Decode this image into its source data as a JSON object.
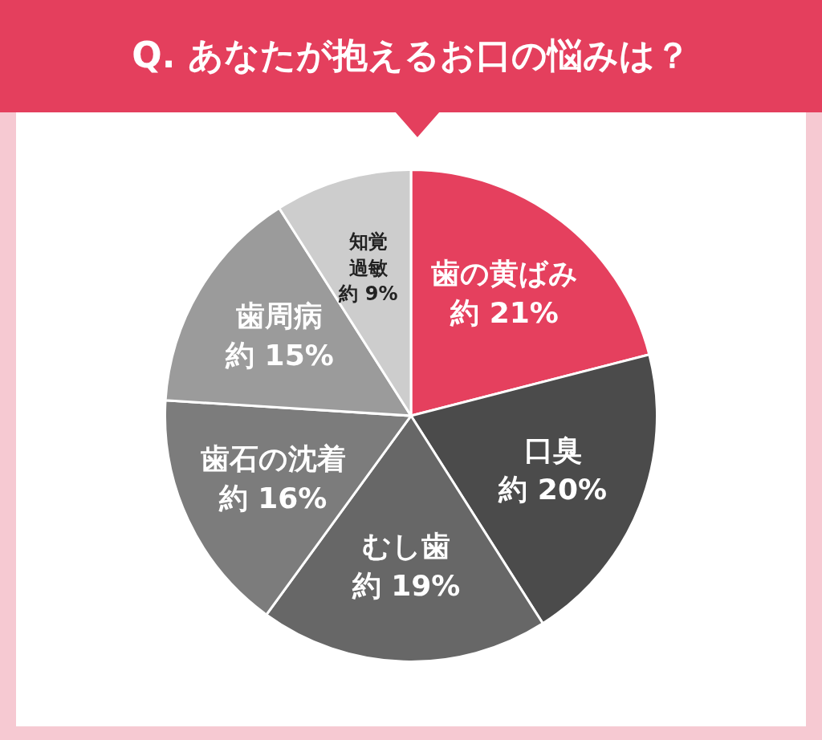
{
  "chart_data": {
    "type": "pie",
    "title": "Q. あなたが抱えるお口の悩みは？",
    "categories": [
      "歯の黄ばみ",
      "口臭",
      "むし歯",
      "歯石の沈着",
      "歯周病",
      "知覚過敏"
    ],
    "values": [
      21,
      20,
      19,
      16,
      15,
      9
    ],
    "colors": [
      "#e5405e",
      "#4b4b4b",
      "#676767",
      "#7c7c7c",
      "#9b9b9b",
      "#cdcdcd"
    ],
    "value_labels": [
      "約 21%",
      "約 20%",
      "約 19%",
      "約 16%",
      "約 15%",
      "約 9%"
    ],
    "legend": false
  }
}
